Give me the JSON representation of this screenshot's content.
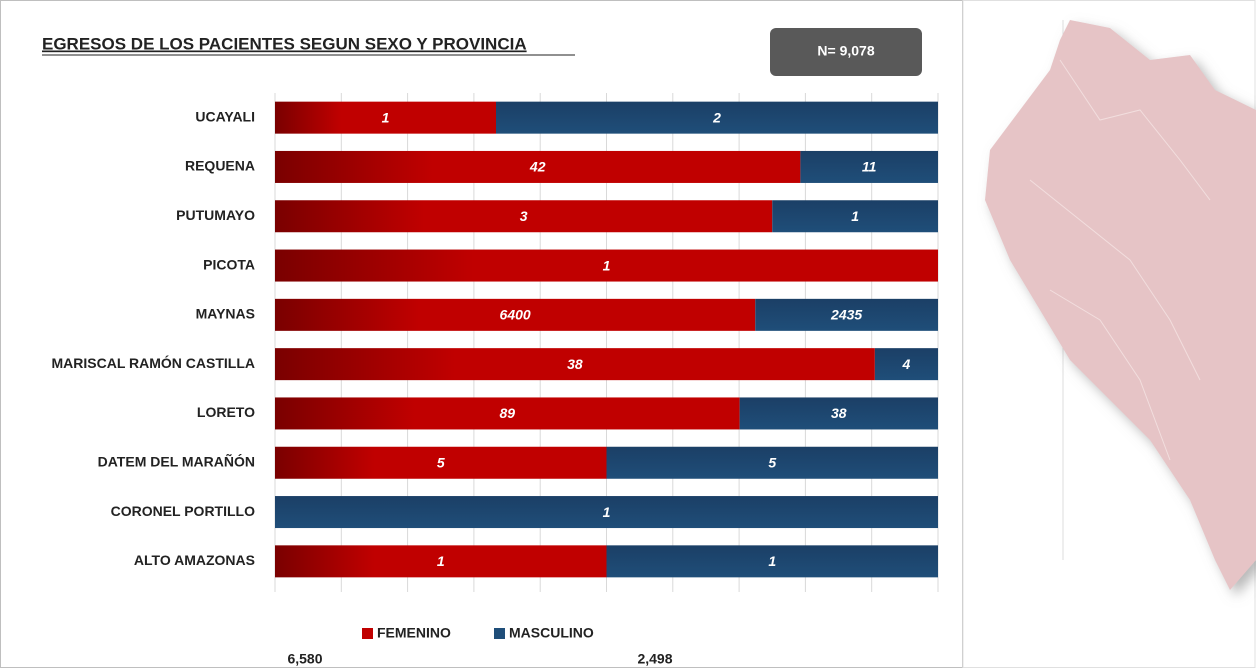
{
  "chart_data": {
    "type": "bar",
    "stacking": "percent",
    "orientation": "horizontal",
    "title": "EGRESOS DE LOS PACIENTES SEGUN SEXO Y PROVINCIA",
    "annotation": {
      "value": 9078,
      "label": "N= 9,078"
    },
    "categories": [
      "UCAYALI",
      "REQUENA",
      "PUTUMAYO",
      "PICOTA",
      "MAYNAS",
      "MARISCAL RAMÓN CASTILLA",
      "LORETO",
      "DATEM DEL MARAÑÓN",
      "CORONEL PORTILLO",
      "ALTO AMAZONAS"
    ],
    "series": [
      {
        "name": "FEMENINO",
        "color": "#c00000",
        "values": [
          1,
          42,
          3,
          1,
          6400,
          38,
          89,
          5,
          null,
          1
        ],
        "total": {
          "value": 6580,
          "label": "6,580"
        }
      },
      {
        "name": "MASCULINO",
        "color": "#1f4e79",
        "values": [
          2,
          11,
          1,
          null,
          2435,
          4,
          38,
          5,
          1,
          1
        ],
        "total": {
          "value": 2498,
          "label": "2,498"
        }
      }
    ],
    "grid": true,
    "legend": "bottom"
  }
}
